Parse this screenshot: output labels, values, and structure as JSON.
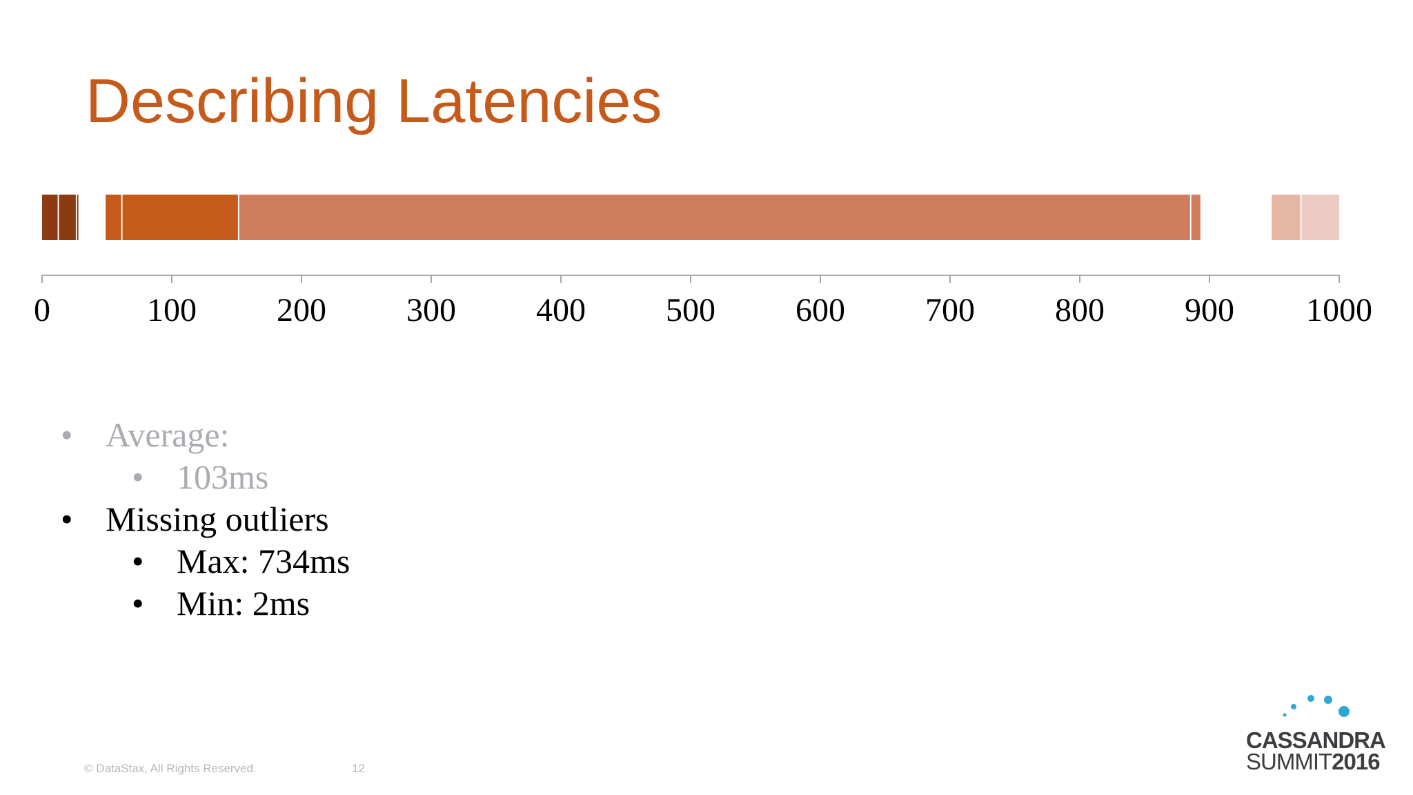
{
  "slide": {
    "title": "Describing Latencies",
    "footer": {
      "copyright": "© DataStax, All Rights Reserved.",
      "page_number": "12"
    },
    "logo": {
      "line1": "CASSANDRA",
      "line2_text": "SUMMIT",
      "line2_year": "2016"
    },
    "bullets": {
      "average_label": "Average:",
      "average_value": "103ms",
      "missing_outliers": "Missing outliers",
      "max": "Max: 734ms",
      "min": "Min: 2ms"
    },
    "colors": {
      "title": "#c55a1a",
      "dark_brown": "#8b3a12",
      "orange": "#c55a1a",
      "salmon": "#d07d5e",
      "pale": "#e6b6a4",
      "faded_text": "#a9adb1",
      "logo_dot": "#2fa6d3"
    }
  },
  "chart_data": {
    "type": "bar",
    "orientation": "horizontal-strip",
    "xlim": [
      0,
      1000
    ],
    "ticks": [
      "0",
      "100",
      "200",
      "300",
      "400",
      "500",
      "600",
      "700",
      "800",
      "900",
      "1000"
    ],
    "segments": [
      {
        "start": 0,
        "end": 12,
        "color": "#8b3a12"
      },
      {
        "start": 13,
        "end": 26,
        "color": "#8b3a12"
      },
      {
        "start": 27,
        "end": 28,
        "color": "#8b3a12"
      },
      {
        "start": 49,
        "end": 61,
        "color": "#c55a1a"
      },
      {
        "start": 62,
        "end": 151,
        "color": "#c55a1a"
      },
      {
        "start": 152,
        "end": 885,
        "color": "#d07d5e"
      },
      {
        "start": 886,
        "end": 893,
        "color": "#d07d5e"
      },
      {
        "start": 948,
        "end": 970,
        "color": "#e6b6a4"
      },
      {
        "start": 971,
        "end": 1000,
        "color": "#ecccc2"
      }
    ]
  }
}
